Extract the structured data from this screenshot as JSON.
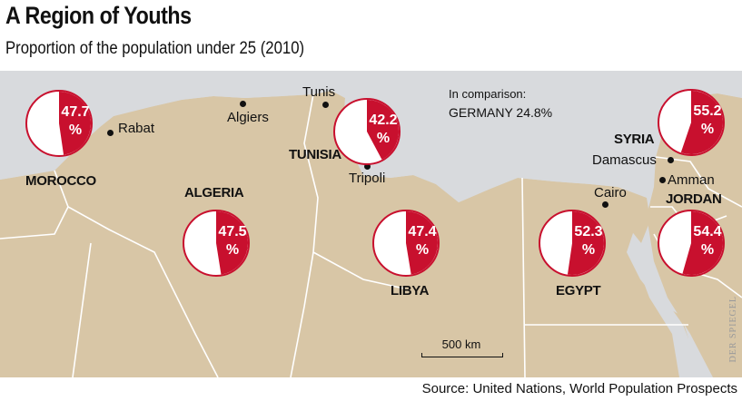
{
  "title": "A Region of Youths",
  "subtitle": "Proportion of the population under 25 (2010)",
  "comparison": {
    "line1": "In comparison:",
    "line2": "GERMANY 24.8%"
  },
  "countries": {
    "morocco": "MOROCCO",
    "algeria": "ALGERIA",
    "tunisia": "TUNISIA",
    "libya": "LIBYA",
    "egypt": "EGYPT",
    "syria": "SYRIA",
    "jordan": "JORDAN"
  },
  "cities": {
    "rabat": "Rabat",
    "algiers": "Algiers",
    "tunis": "Tunis",
    "tripoli": "Tripoli",
    "cairo": "Cairo",
    "damascus": "Damascus",
    "amman": "Amman"
  },
  "pies": [
    {
      "country": "Morocco",
      "value": 47.7,
      "label": "47.7"
    },
    {
      "country": "Tunisia",
      "value": 42.2,
      "label": "42.2"
    },
    {
      "country": "Algeria",
      "value": 47.5,
      "label": "47.5"
    },
    {
      "country": "Libya",
      "value": 47.4,
      "label": "47.4"
    },
    {
      "country": "Egypt",
      "value": 52.3,
      "label": "52.3"
    },
    {
      "country": "Syria",
      "value": 55.2,
      "label": "55.2"
    },
    {
      "country": "Jordan",
      "value": 54.4,
      "label": "54.4"
    }
  ],
  "percent_sign": "%",
  "scale_label": "500 km",
  "credit": "DER SPIEGEL",
  "source": "Source: United Nations, World Population Prospects",
  "colors": {
    "land": "#d8c6a6",
    "border": "#ffffff",
    "outside": "#d8dadd",
    "pie_fill": "#c8102e",
    "pie_bg": "#ffffff"
  }
}
